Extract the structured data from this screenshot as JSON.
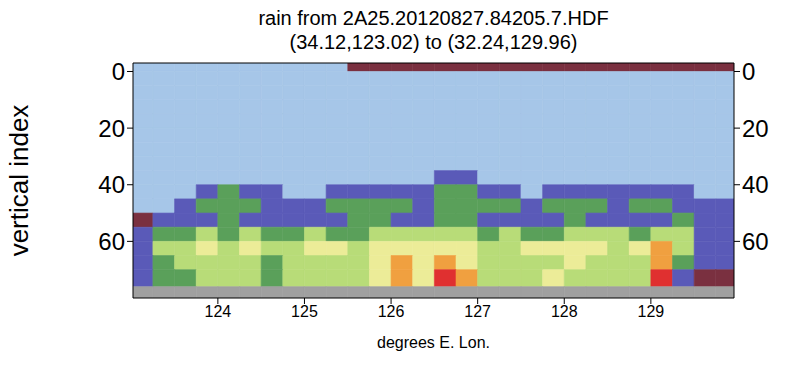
{
  "chart_data": {
    "type": "heatmap",
    "title": "rain from 2A25.20120827.84205.7.HDF",
    "subtitle": "(34.12,123.02) to (32.24,129.96)",
    "x_label": "degrees E. Lon.",
    "y_label": "vertical index",
    "xlim": [
      123.02,
      129.96
    ],
    "xticks": [
      124,
      125,
      126,
      127,
      128,
      129
    ],
    "ylim": [
      -3,
      80
    ],
    "yticks": [
      0,
      20,
      40,
      60
    ],
    "x_bins": [
      123.02,
      123.25,
      123.5,
      123.75,
      124,
      124.25,
      124.5,
      124.75,
      125,
      125.25,
      125.5,
      125.75,
      126,
      126.25,
      126.5,
      126.75,
      127,
      127.25,
      127.5,
      127.75,
      128,
      128.25,
      128.5,
      128.75,
      129,
      129.25,
      129.5,
      129.75,
      129.96
    ],
    "y_bins": [
      -3,
      0,
      5,
      10,
      15,
      20,
      25,
      30,
      35,
      40,
      45,
      50,
      55,
      60,
      65,
      70,
      76,
      80
    ],
    "colors": [
      "#a6c6e8",
      "#7a3040",
      "#5a5ab8",
      "#5aa05a",
      "#b8dc78",
      "#ecec98",
      "#f0a040",
      "#e03030",
      "#a0a0a0"
    ],
    "cells": [
      [
        0,
        0,
        0,
        0,
        0,
        0,
        0,
        0,
        0,
        0,
        1,
        1,
        1,
        1,
        1,
        1,
        1,
        1,
        1,
        1,
        1,
        1,
        1,
        1,
        1,
        1,
        1,
        1
      ],
      [
        0,
        0,
        0,
        0,
        0,
        0,
        0,
        0,
        0,
        0,
        0,
        0,
        0,
        0,
        0,
        0,
        0,
        0,
        0,
        0,
        0,
        0,
        0,
        0,
        0,
        0,
        0,
        0
      ],
      [
        0,
        0,
        0,
        0,
        0,
        0,
        0,
        0,
        0,
        0,
        0,
        0,
        0,
        0,
        0,
        0,
        0,
        0,
        0,
        0,
        0,
        0,
        0,
        0,
        0,
        0,
        0,
        0
      ],
      [
        0,
        0,
        0,
        0,
        0,
        0,
        0,
        0,
        0,
        0,
        0,
        0,
        0,
        0,
        0,
        0,
        0,
        0,
        0,
        0,
        0,
        0,
        0,
        0,
        0,
        0,
        0,
        0
      ],
      [
        0,
        0,
        0,
        0,
        0,
        0,
        0,
        0,
        0,
        0,
        0,
        0,
        0,
        0,
        0,
        0,
        0,
        0,
        0,
        0,
        0,
        0,
        0,
        0,
        0,
        0,
        0,
        0
      ],
      [
        0,
        0,
        0,
        0,
        0,
        0,
        0,
        0,
        0,
        0,
        0,
        0,
        0,
        0,
        0,
        0,
        0,
        0,
        0,
        0,
        0,
        0,
        0,
        0,
        0,
        0,
        0,
        0
      ],
      [
        0,
        0,
        0,
        0,
        0,
        0,
        0,
        0,
        0,
        0,
        0,
        0,
        0,
        0,
        0,
        0,
        0,
        0,
        0,
        0,
        0,
        0,
        0,
        0,
        0,
        0,
        0,
        0
      ],
      [
        0,
        0,
        0,
        0,
        0,
        0,
        0,
        0,
        0,
        0,
        0,
        0,
        0,
        0,
        0,
        0,
        0,
        0,
        0,
        0,
        0,
        0,
        0,
        0,
        0,
        0,
        0,
        0
      ],
      [
        0,
        0,
        0,
        0,
        0,
        0,
        0,
        0,
        0,
        0,
        0,
        0,
        0,
        0,
        2,
        2,
        0,
        0,
        0,
        0,
        0,
        0,
        0,
        0,
        0,
        0,
        0,
        0
      ],
      [
        0,
        0,
        0,
        2,
        3,
        2,
        2,
        0,
        0,
        2,
        2,
        2,
        2,
        2,
        3,
        3,
        2,
        2,
        0,
        2,
        2,
        2,
        2,
        2,
        2,
        2,
        0,
        0
      ],
      [
        0,
        0,
        2,
        3,
        3,
        3,
        2,
        2,
        2,
        3,
        3,
        3,
        3,
        2,
        3,
        3,
        3,
        3,
        2,
        3,
        3,
        3,
        2,
        3,
        3,
        2,
        2,
        2
      ],
      [
        1,
        2,
        2,
        2,
        3,
        2,
        2,
        2,
        2,
        2,
        3,
        3,
        2,
        2,
        3,
        3,
        2,
        2,
        2,
        2,
        3,
        2,
        2,
        2,
        2,
        3,
        2,
        2
      ],
      [
        2,
        3,
        3,
        4,
        3,
        4,
        3,
        3,
        4,
        3,
        3,
        4,
        4,
        4,
        4,
        4,
        3,
        4,
        3,
        3,
        4,
        4,
        4,
        3,
        4,
        4,
        2,
        2
      ],
      [
        2,
        4,
        4,
        5,
        4,
        5,
        4,
        4,
        5,
        5,
        4,
        5,
        5,
        5,
        5,
        5,
        4,
        4,
        5,
        5,
        5,
        5,
        4,
        5,
        6,
        4,
        2,
        2
      ],
      [
        2,
        3,
        4,
        4,
        4,
        4,
        3,
        4,
        4,
        4,
        4,
        5,
        6,
        5,
        6,
        5,
        4,
        4,
        4,
        4,
        5,
        4,
        4,
        4,
        6,
        3,
        2,
        2
      ],
      [
        2,
        3,
        3,
        4,
        4,
        4,
        3,
        4,
        4,
        4,
        4,
        5,
        6,
        5,
        7,
        6,
        4,
        4,
        4,
        5,
        4,
        4,
        4,
        4,
        7,
        2,
        1,
        1
      ],
      [
        8,
        8,
        8,
        8,
        8,
        8,
        8,
        8,
        8,
        8,
        8,
        8,
        8,
        8,
        8,
        8,
        8,
        8,
        8,
        8,
        8,
        8,
        8,
        8,
        8,
        8,
        8,
        8
      ]
    ]
  }
}
